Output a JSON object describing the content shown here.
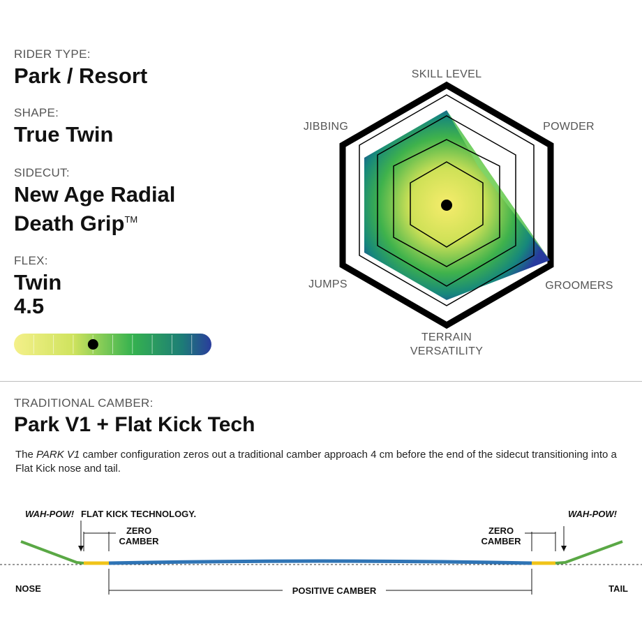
{
  "rider_type": {
    "label": "RIDER TYPE:",
    "value": "Park / Resort"
  },
  "shape": {
    "label": "SHAPE:",
    "value": "True Twin"
  },
  "sidecut": {
    "label": "SIDECUT:",
    "value_line1": "New Age Radial",
    "value_line2": "Death Grip",
    "trademark": "TM"
  },
  "flex": {
    "label": "FLEX:",
    "value_line1": "Twin",
    "value_line2": "4.5",
    "level": 4.5,
    "scale_max": 10
  },
  "radar": {
    "axes": {
      "skill_level": "SKILL LEVEL",
      "powder": "POWDER",
      "groomers": "GROOMERS",
      "terrain_line1": "TERRAIN",
      "terrain_line2": "VERSATILITY",
      "jumps": "JUMPS",
      "jibbing": "JIBBING"
    }
  },
  "camber": {
    "label": "TRADITIONAL CAMBER:",
    "name": "Park V1 + Flat Kick Tech",
    "description_prefix": "The ",
    "description_em": "PARK V1",
    "description_rest": " camber configuration zeros out a traditional camber approach 4 cm before the end of the sidecut transitioning into a Flat Kick nose and tail."
  },
  "profile": {
    "wahpow_left": "WAH-POW!",
    "flat_kick": "FLAT KICK TECHNOLOGY.",
    "zero": "ZERO",
    "camber_word": "CAMBER",
    "wahpow_right": "WAH-POW!",
    "nose": "NOSE",
    "tail": "TAIL",
    "positive_camber": "POSITIVE CAMBER",
    "colors": {
      "flat_kick": "#5aa845",
      "zero_camber": "#f0c419",
      "camber": "#2f74b5"
    }
  }
}
